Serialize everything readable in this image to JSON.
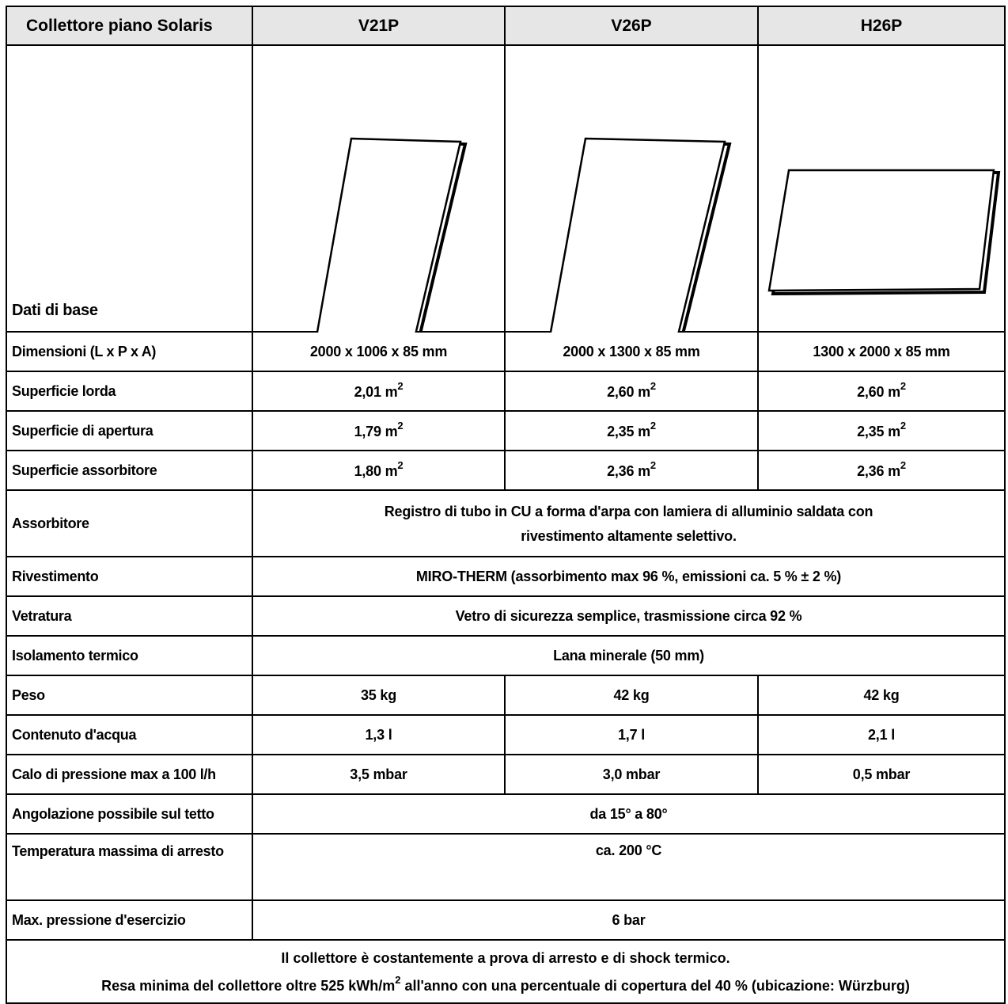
{
  "header": {
    "title": "Collettore piano Solaris",
    "models": [
      "V21P",
      "V26P",
      "H26P"
    ]
  },
  "base_row_label": "Dati di base",
  "images": [
    "vertical-collector-panel-icon",
    "vertical-collector-panel-icon",
    "horizontal-collector-panel-icon"
  ],
  "rows": {
    "dimensioni": {
      "label": "Dimensioni (L x P x A)",
      "values": [
        "2000 x 1006 x 85 mm",
        "2000 x 1300 x 85 mm",
        "1300 x 2000 x 85 mm"
      ]
    },
    "sup_lorda": {
      "label": "Superficie lorda",
      "values": [
        "2,01 m",
        "2,60 m",
        "2,60 m"
      ],
      "sup": "2"
    },
    "sup_apertura": {
      "label": "Superficie di apertura",
      "values": [
        "1,79 m",
        "2,35 m",
        "2,35 m"
      ],
      "sup": "2"
    },
    "sup_assorbitore": {
      "label": "Superficie assorbitore",
      "values": [
        "1,80 m",
        "2,36 m",
        "2,36 m"
      ],
      "sup": "2"
    },
    "assorbitore": {
      "label": "Assorbitore",
      "line1": "Registro di tubo in CU a forma d'arpa con lamiera di alluminio saldata con",
      "line2": "rivestimento altamente selettivo."
    },
    "rivestimento": {
      "label": "Rivestimento",
      "value": "MIRO-THERM (assorbimento max 96 %, emissioni ca. 5 % ± 2 %)"
    },
    "vetratura": {
      "label": "Vetratura",
      "value": "Vetro di sicurezza semplice, trasmissione circa 92 %"
    },
    "isolamento": {
      "label": "Isolamento termico",
      "value": "Lana minerale (50 mm)"
    },
    "peso": {
      "label": "Peso",
      "values": [
        "35 kg",
        "42 kg",
        "42 kg"
      ]
    },
    "contenuto": {
      "label": "Contenuto d'acqua",
      "values": [
        "1,3 l",
        "1,7 l",
        "2,1 l"
      ]
    },
    "calo": {
      "label": "Calo di pressione max a 100 l/h",
      "values": [
        "3,5 mbar",
        "3,0 mbar",
        "0,5 mbar"
      ]
    },
    "angolazione": {
      "label": "Angolazione possibile sul tetto",
      "value": "da 15° a 80°"
    },
    "temperatura": {
      "label": "Temperatura massima di arresto",
      "value": "ca. 200 °C"
    },
    "pressione": {
      "label": "Max. pressione d'esercizio",
      "value": "6 bar"
    }
  },
  "footer": {
    "line1": "Il collettore è costantemente a prova di arresto e di shock termico.",
    "line2a": "Resa minima del collettore oltre 525 kWh/m",
    "line2sup": "2",
    "line2b": " all'anno con una percentuale di copertura del 40 % (ubicazione: Würzburg)"
  }
}
